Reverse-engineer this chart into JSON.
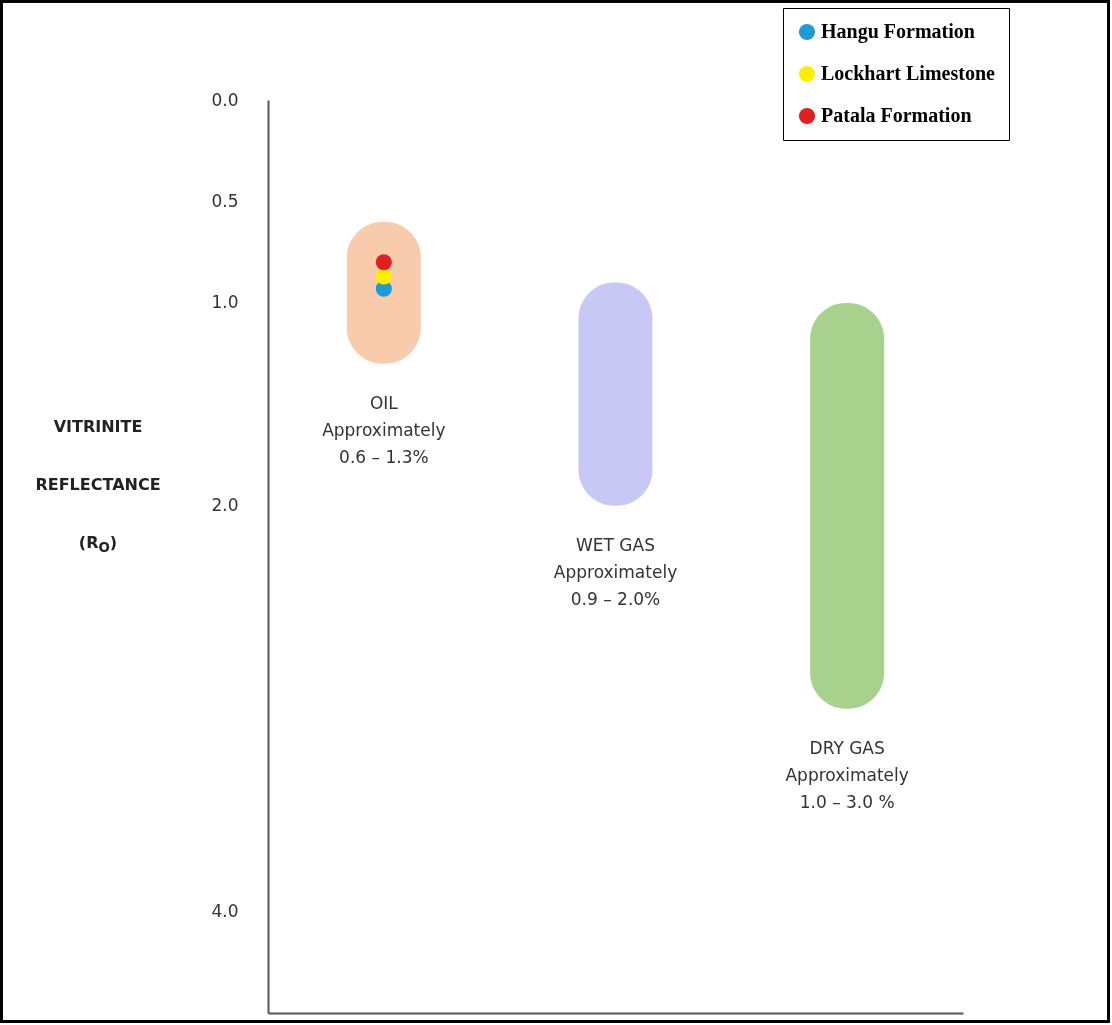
{
  "chart_data": {
    "type": "bar",
    "categories": [
      "OIL",
      "WET GAS",
      "DRY GAS"
    ],
    "ylabel": "VITRINITE REFLECTANCE (R$_{O}$)",
    "ylim": [
      4.5,
      0.0
    ],
    "yticks": [
      {
        "value": 0,
        "label": "0.0"
      },
      {
        "value": 0.5,
        "label": "0.5"
      },
      {
        "value": 1,
        "label": "1.0"
      },
      {
        "value": 2,
        "label": "2.0"
      },
      {
        "value": 4,
        "label": "4.0"
      }
    ],
    "tick_labels": "y",
    "legend": "top right",
    "marker": "circle",
    "series": [
      {
        "base": [
          0.6,
          0.9,
          1.0
        ],
        "values": [
          0.7,
          1.1,
          2.0
        ],
        "colors": [
          "#f8cbad",
          "#c8c8f4",
          "#a9d18e"
        ]
      },
      {
        "type": "scatter",
        "name": "Hangu Formation",
        "color": "#1e9ad6",
        "x": [
          "OIL"
        ],
        "values": [
          0.93
        ]
      },
      {
        "type": "scatter",
        "name": "Lockhart Limestone",
        "color": "#ffee00",
        "x": [
          "OIL"
        ],
        "values": [
          0.87
        ]
      },
      {
        "type": "scatter",
        "name": "Patala Formation",
        "color": "#e02020",
        "x": [
          "OIL"
        ],
        "values": [
          0.8
        ]
      }
    ],
    "annotations": [
      "Approximately\n0.6 – 1.3%",
      "Approximately\n0.9 – 2.0%",
      "Approximately\n1.0 – 3.0 %"
    ]
  }
}
